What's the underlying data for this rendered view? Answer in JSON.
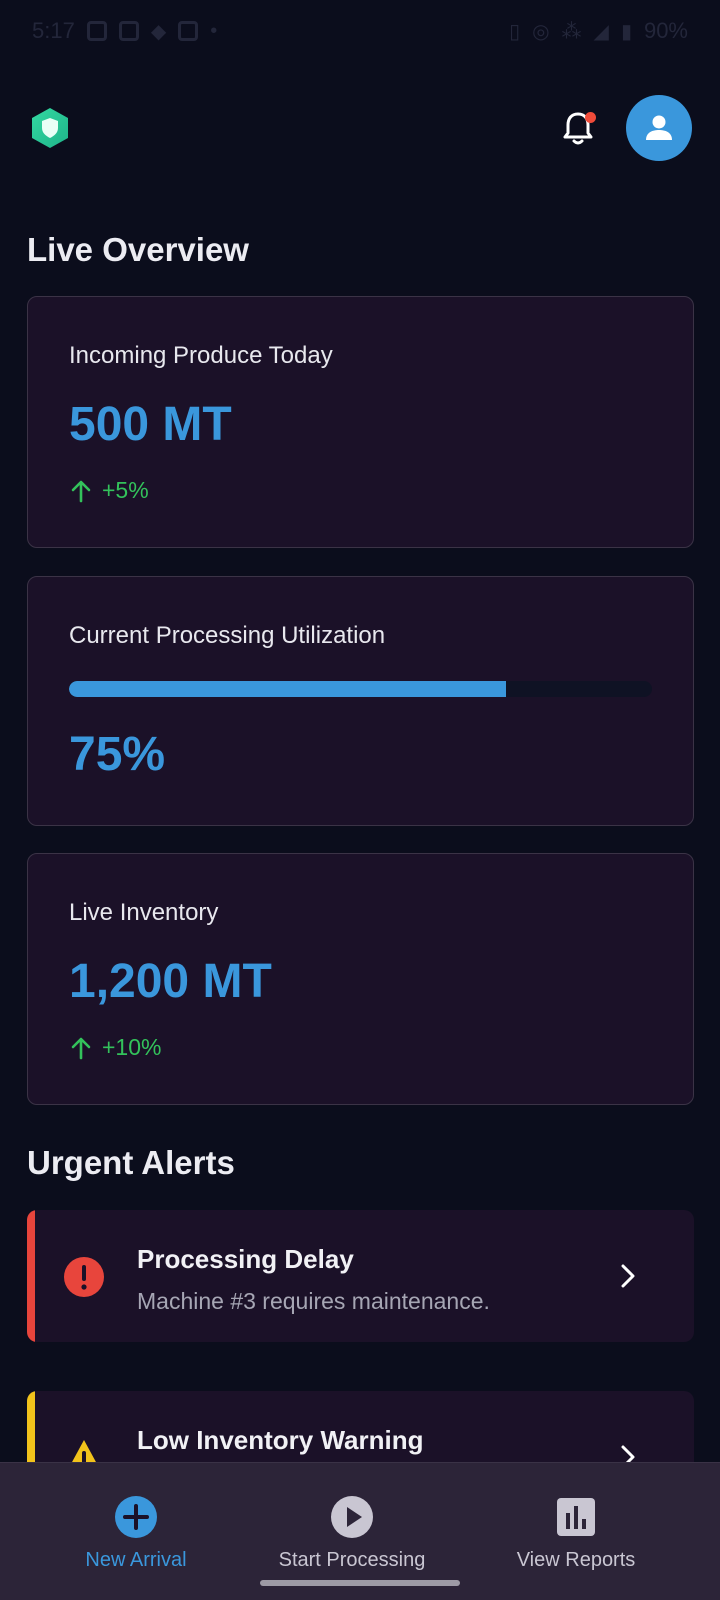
{
  "status_bar": {
    "time": "5:17",
    "battery": "90%"
  },
  "header": {
    "logo_icon": "shield-hexagon-logo",
    "notification_icon": "bell-icon",
    "profile_icon": "user-icon"
  },
  "overview": {
    "title": "Live Overview",
    "incoming": {
      "label": "Incoming Produce Today",
      "value": "500 MT",
      "delta": "+5%"
    },
    "utilization": {
      "label": "Current Processing Utilization",
      "value": "75%",
      "progress": 0.75
    },
    "inventory": {
      "label": "Live Inventory",
      "value": "1,200 MT",
      "delta": "+10%"
    }
  },
  "alerts": {
    "title": "Urgent Alerts",
    "items": [
      {
        "title": "Processing Delay",
        "description": "Machine #3 requires maintenance.",
        "severity_color": "#e8453c",
        "icon": "error-icon"
      },
      {
        "title": "Low Inventory Warning",
        "description": "",
        "severity_color": "#f2c31b",
        "icon": "warning-icon"
      }
    ]
  },
  "bottom_nav": {
    "items": [
      {
        "label": "New Arrival",
        "icon": "add-circle-icon",
        "active": true
      },
      {
        "label": "Start Processing",
        "icon": "play-circle-icon",
        "active": false
      },
      {
        "label": "View Reports",
        "icon": "bar-chart-icon",
        "active": false
      }
    ]
  },
  "colors": {
    "background": "#0b0d1c",
    "card": "#1b1128",
    "accent": "#3a97dc",
    "positive": "#33c25b"
  }
}
